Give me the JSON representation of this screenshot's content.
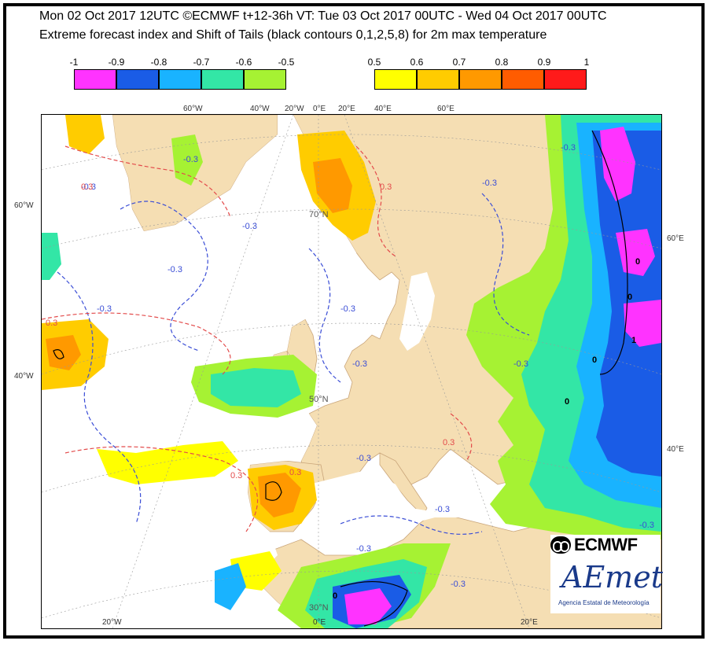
{
  "header": {
    "title_line1": "Mon 02 Oct 2017 12UTC ©ECMWF t+12-36h  VT: Tue 03 Oct 2017 00UTC - Wed 04 Oct 2017 00UTC",
    "title_line2": "Extreme forecast index and Shift of Tails (black contours 0,1,2,5,8) for 2m max temperature"
  },
  "legend": {
    "negative": {
      "labels": [
        "-1",
        "-0.9",
        "-0.8",
        "-0.7",
        "-0.6",
        "-0.5"
      ],
      "colors": [
        "#ff33ff",
        "#1a5ce6",
        "#19b3ff",
        "#33e6a6",
        "#a6f233"
      ]
    },
    "positive": {
      "labels": [
        "0.5",
        "0.6",
        "0.7",
        "0.8",
        "0.9",
        "1"
      ],
      "colors": [
        "#ffff00",
        "#ffcc00",
        "#ff9900",
        "#ff5c00",
        "#ff1a1a"
      ]
    }
  },
  "map": {
    "colors": {
      "land": "#f5deb3",
      "sea": "#ffffff",
      "border": "#c9a57a",
      "contour_neg": "#3a4dd6",
      "contour_pos": "#e34b4b"
    },
    "lat_labels": [
      "60°W",
      "40°W",
      "60°E",
      "40°E"
    ],
    "lon_labels_top": [
      "60°W",
      "40°W",
      "20°W",
      "0°E",
      "20°E",
      "40°E",
      "60°E"
    ],
    "lon_labels_bottom": [
      "20°W",
      "0°E",
      "20°E"
    ],
    "inner_labels": [
      "70°N",
      "50°N",
      "30°N"
    ],
    "contour_labels_neg": [
      "-0.3",
      "-0.3",
      "-0.3",
      "-0.3",
      "-0.3",
      "-0.3",
      "-0.3",
      "-0.3",
      "-0.3",
      "-0.3",
      "-0.3",
      "-0.3",
      "-0.3",
      "-0.3",
      "-0.3"
    ],
    "contour_labels_pos": [
      "0.3",
      "0.3",
      "0.3",
      "0.3",
      "0.3",
      "0.3"
    ],
    "sot_labels": [
      "0",
      "0",
      "1",
      "0",
      "0",
      "0"
    ]
  },
  "logos": {
    "ecmwf": "ECMWF",
    "aemet": "AEmet",
    "aemet_sub": "Agencia Estatal de Meteorología"
  }
}
